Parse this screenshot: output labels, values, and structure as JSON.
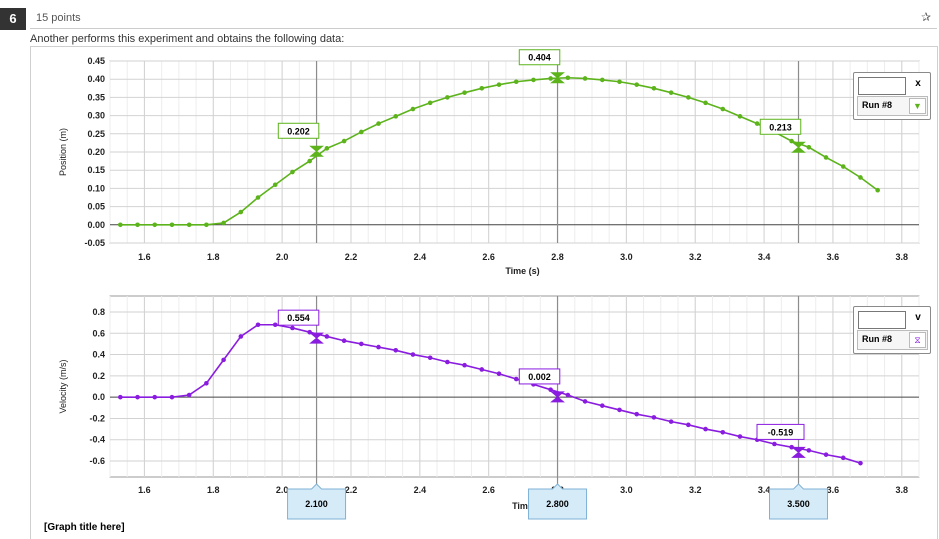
{
  "question": {
    "number": "6",
    "points": "15 points",
    "prompt": "Another performs this experiment and obtains the following data:",
    "pin_icon": "pin-icon"
  },
  "graph_title": "[Graph title here]",
  "cursors": {
    "x": [
      "2.100",
      "2.800",
      "3.500"
    ]
  },
  "legends": [
    {
      "var": "x",
      "run": "Run #8",
      "color": "#5cb31b",
      "swatch": "triangle-down-icon"
    },
    {
      "var": "v",
      "run": "Run #8",
      "color": "#8a1ce0",
      "swatch": "hourglass-icon"
    }
  ],
  "chart_data": [
    {
      "type": "line",
      "xlabel": "Time (s)",
      "ylabel": "Position (m)",
      "xlim": [
        1.5,
        3.85
      ],
      "ylim": [
        -0.05,
        0.45
      ],
      "xticks": [
        "1.6",
        "1.8",
        "2.0",
        "2.2",
        "2.4",
        "2.6",
        "2.8",
        "3.0",
        "3.2",
        "3.4",
        "3.6",
        "3.8"
      ],
      "yticks": [
        "0.45",
        "0.40",
        "0.35",
        "0.30",
        "0.25",
        "0.20",
        "0.15",
        "0.10",
        "0.05",
        "0.00",
        "-0.05"
      ],
      "series": [
        {
          "color": "#5cb31b",
          "x": [
            1.53,
            1.58,
            1.63,
            1.68,
            1.73,
            1.78,
            1.83,
            1.88,
            1.93,
            1.98,
            2.03,
            2.08,
            2.13,
            2.18,
            2.23,
            2.28,
            2.33,
            2.38,
            2.43,
            2.48,
            2.53,
            2.58,
            2.63,
            2.68,
            2.73,
            2.78,
            2.83,
            2.88,
            2.93,
            2.98,
            3.03,
            3.08,
            3.13,
            3.18,
            3.23,
            3.28,
            3.33,
            3.38,
            3.43,
            3.48,
            3.53,
            3.58,
            3.63,
            3.68,
            3.73
          ],
          "y": [
            0.0,
            0.0,
            0.0,
            0.0,
            0.0,
            0.0,
            0.005,
            0.035,
            0.075,
            0.11,
            0.145,
            0.175,
            0.21,
            0.23,
            0.255,
            0.278,
            0.298,
            0.318,
            0.335,
            0.35,
            0.363,
            0.375,
            0.385,
            0.393,
            0.398,
            0.402,
            0.404,
            0.402,
            0.398,
            0.393,
            0.385,
            0.375,
            0.363,
            0.35,
            0.335,
            0.318,
            0.298,
            0.278,
            0.255,
            0.23,
            0.213,
            0.185,
            0.16,
            0.13,
            0.095
          ]
        }
      ],
      "annotations": [
        {
          "x": 2.1,
          "y": 0.202,
          "text": "0.202"
        },
        {
          "x": 2.8,
          "y": 0.404,
          "text": "0.404"
        },
        {
          "x": 3.5,
          "y": 0.213,
          "text": "0.213"
        }
      ]
    },
    {
      "type": "line",
      "xlabel": "Time",
      "ylabel": "Velocity (m/s)",
      "xlim": [
        1.5,
        3.85
      ],
      "ylim": [
        -0.75,
        0.95
      ],
      "xticks": [
        "1.6",
        "1.8",
        "2.0",
        "2.2",
        "2.4",
        "2.6",
        "2.8",
        "3.0",
        "3.2",
        "3.4",
        "3.6",
        "3.8"
      ],
      "yticks": [
        "0.8",
        "0.6",
        "0.4",
        "0.2",
        "0.0",
        "-0.2",
        "-0.4",
        "-0.6"
      ],
      "series": [
        {
          "color": "#8a1ce0",
          "x": [
            1.53,
            1.58,
            1.63,
            1.68,
            1.73,
            1.78,
            1.83,
            1.88,
            1.93,
            1.98,
            2.03,
            2.08,
            2.13,
            2.18,
            2.23,
            2.28,
            2.33,
            2.38,
            2.43,
            2.48,
            2.53,
            2.58,
            2.63,
            2.68,
            2.73,
            2.78,
            2.83,
            2.88,
            2.93,
            2.98,
            3.03,
            3.08,
            3.13,
            3.18,
            3.23,
            3.28,
            3.33,
            3.38,
            3.43,
            3.48,
            3.53,
            3.58,
            3.63,
            3.68
          ],
          "y": [
            0.0,
            0.0,
            0.0,
            0.0,
            0.02,
            0.13,
            0.35,
            0.57,
            0.68,
            0.68,
            0.65,
            0.61,
            0.57,
            0.53,
            0.5,
            0.47,
            0.44,
            0.4,
            0.37,
            0.33,
            0.3,
            0.26,
            0.22,
            0.17,
            0.12,
            0.07,
            0.02,
            -0.04,
            -0.08,
            -0.12,
            -0.16,
            -0.19,
            -0.23,
            -0.26,
            -0.3,
            -0.33,
            -0.37,
            -0.4,
            -0.44,
            -0.47,
            -0.5,
            -0.54,
            -0.57,
            -0.62
          ]
        }
      ],
      "annotations": [
        {
          "x": 2.1,
          "y": 0.554,
          "text": "0.554"
        },
        {
          "x": 2.8,
          "y": 0.002,
          "text": "0.002"
        },
        {
          "x": 3.5,
          "y": -0.519,
          "text": "-0.519"
        }
      ]
    }
  ]
}
